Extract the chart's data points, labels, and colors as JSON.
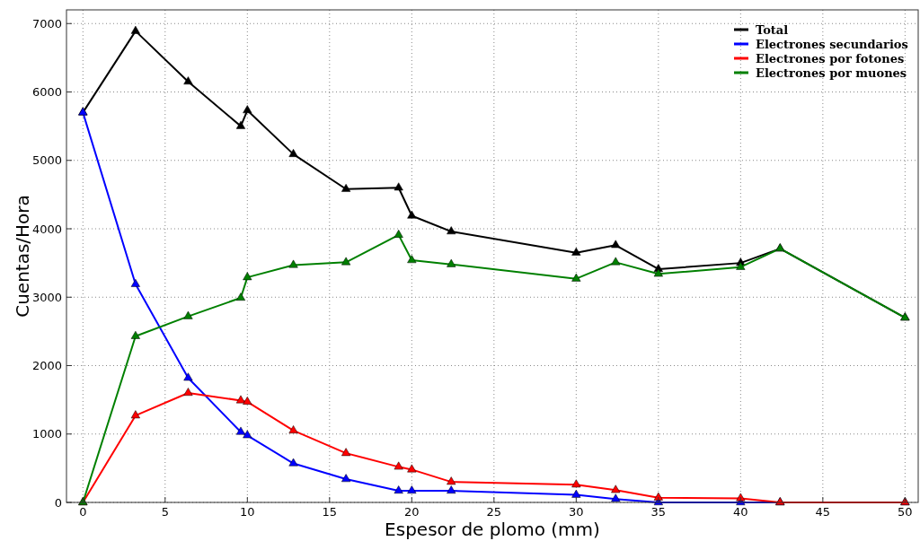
{
  "chart_data": {
    "type": "line",
    "xlabel": "Espesor de plomo (mm)",
    "ylabel": "Cuentas/Hora",
    "x": [
      0,
      3.2,
      6.4,
      9.6,
      10,
      12.8,
      16,
      19.2,
      20,
      22.4,
      30,
      32.4,
      35,
      40,
      42.4,
      50
    ],
    "series": [
      {
        "name": "Total",
        "color": "#000000",
        "values": [
          5700,
          6890,
          6150,
          5500,
          5730,
          5090,
          4580,
          4600,
          4190,
          3960,
          3650,
          3760,
          3410,
          3500,
          3710,
          2700
        ]
      },
      {
        "name": "Electrones secundarios",
        "color": "#0000ff",
        "values": [
          5700,
          3190,
          1820,
          1030,
          980,
          570,
          340,
          170,
          170,
          170,
          110,
          50,
          0,
          0,
          0,
          0
        ]
      },
      {
        "name": "Electrones por fotones",
        "color": "#ff0000",
        "values": [
          0,
          1270,
          1600,
          1490,
          1470,
          1050,
          720,
          520,
          480,
          300,
          260,
          180,
          70,
          60,
          0,
          0
        ]
      },
      {
        "name": "Electrones por muones",
        "color": "#008000",
        "values": [
          0,
          2430,
          2720,
          2990,
          3290,
          3470,
          3510,
          3910,
          3540,
          3480,
          3270,
          3510,
          3340,
          3440,
          3710,
          2700
        ]
      }
    ],
    "xlim": [
      -1,
      50.8
    ],
    "ylim": [
      0,
      7200
    ],
    "xticks": [
      0,
      5,
      10,
      15,
      20,
      25,
      30,
      35,
      40,
      45,
      50
    ],
    "yticks": [
      0,
      1000,
      2000,
      3000,
      4000,
      5000,
      6000,
      7000
    ],
    "grid": true,
    "legend": "top right",
    "marker": "triangle",
    "line_style": "solid"
  }
}
